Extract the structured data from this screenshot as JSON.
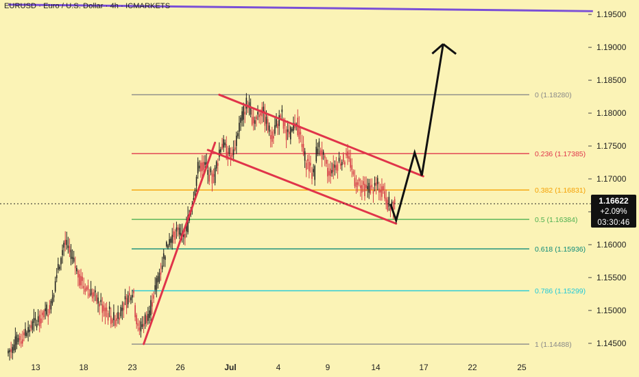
{
  "header": {
    "title": "EURUSD · Euro / U.S. Dollar · 4h · ICMARKETS"
  },
  "price_badge": {
    "price": "1.16622",
    "change": "+2.09%",
    "countdown": "03:30:46"
  },
  "colors": {
    "background": "#fbf3b6",
    "candle_up": "#1f1f1f",
    "candle_down": "#d43a45",
    "channel": "#e0344a",
    "trendline": "#7a4fd6",
    "projection": "#111111"
  },
  "chart_data": {
    "type": "candlestick",
    "title": "EURUSD · Euro / U.S. Dollar · 4h · ICMARKETS",
    "xlabel": "",
    "ylabel": "",
    "ylim": [
      1.1428,
      1.1972
    ],
    "yticks": [
      "1.14500",
      "1.15000",
      "1.15500",
      "1.16000",
      "1.16500",
      "1.17000",
      "1.17500",
      "1.18000",
      "1.18500",
      "1.19000",
      "1.19500"
    ],
    "xticks": [
      "13",
      "18",
      "23",
      "26",
      "Jul",
      "4",
      "9",
      "14",
      "17",
      "22",
      "25"
    ],
    "grid": false,
    "last_price": 1.16622,
    "fibonacci": [
      {
        "label": "0 (1.18280)",
        "value": 1.1828,
        "color": "#888888"
      },
      {
        "label": "0.236 (1.17385)",
        "value": 1.17385,
        "color": "#e0344a"
      },
      {
        "label": "0.382 (1.16831)",
        "value": 1.16831,
        "color": "#f5a000"
      },
      {
        "label": "0.5 (1.16384)",
        "value": 1.16384,
        "color": "#4caf50"
      },
      {
        "label": "0.618 (1.15936)",
        "value": 1.15936,
        "color": "#0c8a78"
      },
      {
        "label": "0.786 (1.15299)",
        "value": 1.15299,
        "color": "#1ec8d8"
      },
      {
        "label": "1 (1.14488)",
        "value": 1.14488,
        "color": "#888888"
      }
    ],
    "anchors": [
      {
        "x": 0,
        "y": 1.1435
      },
      {
        "x": 30,
        "y": 1.1505
      },
      {
        "x": 40,
        "y": 1.1605
      },
      {
        "x": 52,
        "y": 1.1545
      },
      {
        "x": 75,
        "y": 1.1485
      },
      {
        "x": 88,
        "y": 1.153
      },
      {
        "x": 92,
        "y": 1.1468
      },
      {
        "x": 100,
        "y": 1.15
      },
      {
        "x": 112,
        "y": 1.16
      },
      {
        "x": 118,
        "y": 1.162
      },
      {
        "x": 125,
        "y": 1.1615
      },
      {
        "x": 135,
        "y": 1.1725
      },
      {
        "x": 145,
        "y": 1.17
      },
      {
        "x": 150,
        "y": 1.1755
      },
      {
        "x": 158,
        "y": 1.173
      },
      {
        "x": 162,
        "y": 1.1775
      },
      {
        "x": 168,
        "y": 1.1815
      },
      {
        "x": 173,
        "y": 1.179
      },
      {
        "x": 178,
        "y": 1.181
      },
      {
        "x": 185,
        "y": 1.1765
      },
      {
        "x": 192,
        "y": 1.1795
      },
      {
        "x": 198,
        "y": 1.176
      },
      {
        "x": 203,
        "y": 1.179
      },
      {
        "x": 208,
        "y": 1.1735
      },
      {
        "x": 215,
        "y": 1.1705
      },
      {
        "x": 218,
        "y": 1.1755
      },
      {
        "x": 225,
        "y": 1.171
      },
      {
        "x": 232,
        "y": 1.1725
      },
      {
        "x": 238,
        "y": 1.1735
      },
      {
        "x": 245,
        "y": 1.1695
      },
      {
        "x": 252,
        "y": 1.1685
      },
      {
        "x": 262,
        "y": 1.169
      },
      {
        "x": 268,
        "y": 1.166
      },
      {
        "x": 271,
        "y": 1.1662
      }
    ],
    "channel": {
      "upper": [
        {
          "x": 148,
          "y": 1.1828
        },
        {
          "x": 291,
          "y": 1.1704
        }
      ],
      "lower": [
        {
          "x": 140,
          "y": 1.1744
        },
        {
          "x": 272,
          "y": 1.1632
        }
      ],
      "support": [
        {
          "x": 95,
          "y": 1.1449
        },
        {
          "x": 145,
          "y": 1.1755
        }
      ]
    },
    "trendline": [
      {
        "x": 0,
        "y": 1.1965
      },
      {
        "x": 410,
        "y": 1.1955
      }
    ],
    "projection": [
      {
        "x": 268,
        "y": 1.1662
      },
      {
        "x": 272,
        "y": 1.1637
      },
      {
        "x": 285,
        "y": 1.174
      },
      {
        "x": 290,
        "y": 1.1705
      },
      {
        "x": 305,
        "y": 1.1905
      },
      {
        "x": 314,
        "y": 1.189
      }
    ]
  }
}
